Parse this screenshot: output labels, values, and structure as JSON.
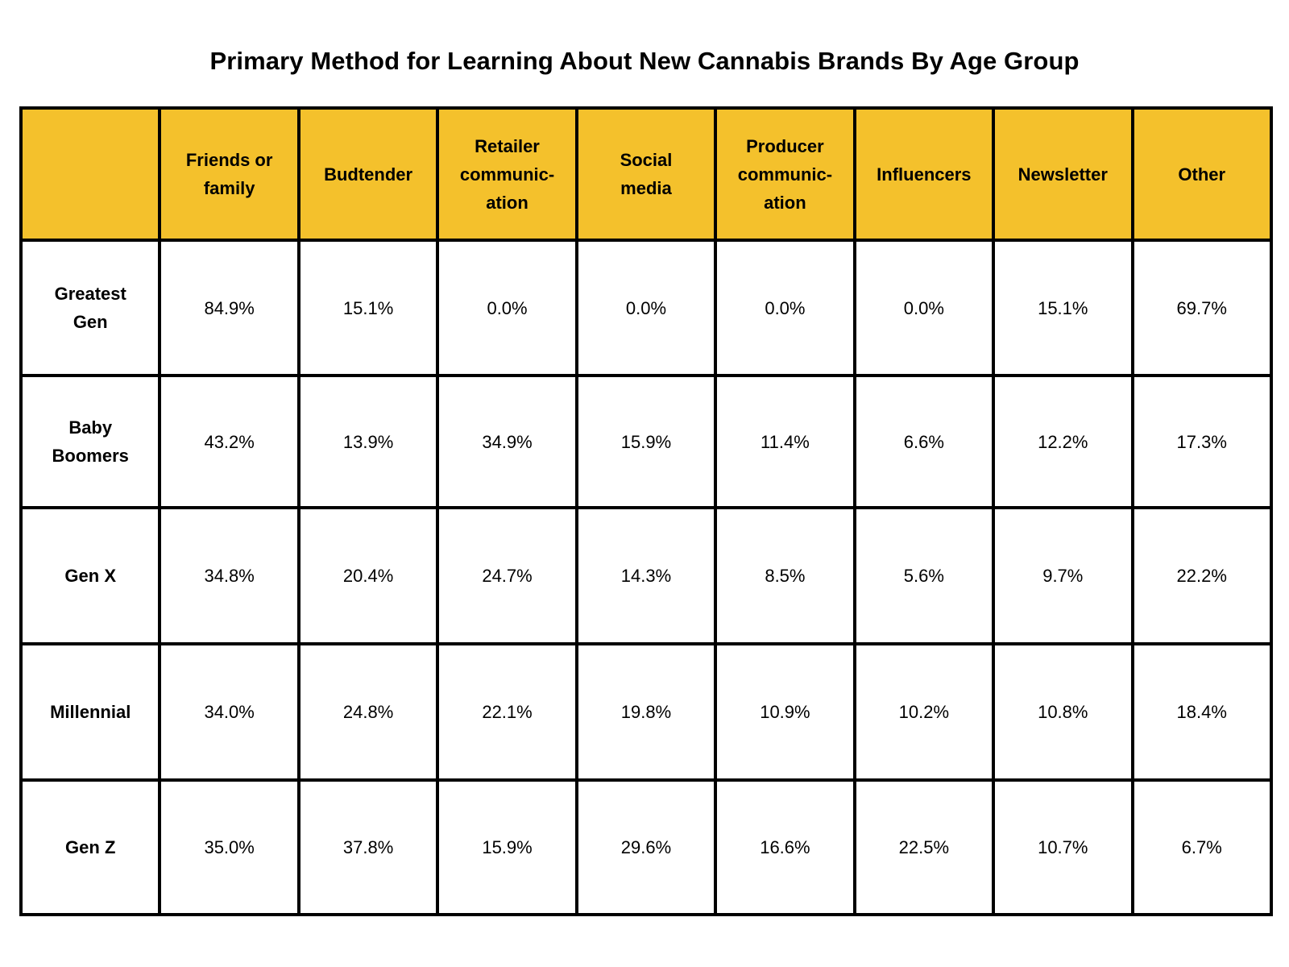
{
  "chart_data": {
    "type": "table",
    "title": "Primary Method for Learning About New Cannabis Brands By Age Group",
    "columns": [
      "",
      "Friends or\nfamily",
      "Budtender",
      "Retailer\ncommunic-\nation",
      "Social\nmedia",
      "Producer\ncommunic-\nation",
      "Influencers",
      "Newsletter",
      "Other"
    ],
    "rows": [
      {
        "label": "Greatest\nGen",
        "values": [
          "84.9%",
          "15.1%",
          "0.0%",
          "0.0%",
          "0.0%",
          "0.0%",
          "15.1%",
          "69.7%"
        ]
      },
      {
        "label": "Baby\nBoomers",
        "values": [
          "43.2%",
          "13.9%",
          "34.9%",
          "15.9%",
          "11.4%",
          "6.6%",
          "12.2%",
          "17.3%"
        ]
      },
      {
        "label": "Gen X",
        "values": [
          "34.8%",
          "20.4%",
          "24.7%",
          "14.3%",
          "8.5%",
          "5.6%",
          "9.7%",
          "22.2%"
        ]
      },
      {
        "label": "Millennial",
        "values": [
          "34.0%",
          "24.8%",
          "22.1%",
          "19.8%",
          "10.9%",
          "10.2%",
          "10.8%",
          "18.4%"
        ]
      },
      {
        "label": "Gen Z",
        "values": [
          "35.0%",
          "37.8%",
          "15.9%",
          "29.6%",
          "16.6%",
          "22.5%",
          "10.7%",
          "6.7%"
        ]
      }
    ]
  },
  "colors": {
    "header_fill": "#F4C12C",
    "border": "#000000",
    "background": "#FFFFFF"
  }
}
